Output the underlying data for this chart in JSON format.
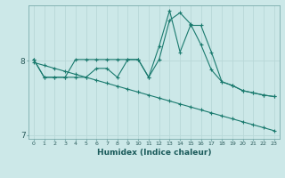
{
  "xlabel": "Humidex (Indice chaleur)",
  "bg_color": "#cce8e8",
  "line_color": "#1a7a6e",
  "grid_color": "#b8d8d8",
  "xmin": 0,
  "xmax": 23,
  "ymin": 6.95,
  "ymax": 8.75,
  "yticks": [
    7,
    8
  ],
  "ytick_labels": [
    "7",
    "8"
  ],
  "series": [
    [
      8.02,
      7.78,
      7.78,
      7.78,
      8.02,
      8.02,
      8.02,
      8.02,
      8.02,
      8.02,
      8.02,
      7.78,
      8.02,
      8.55,
      8.65,
      8.5,
      8.22,
      7.88,
      7.72,
      7.67,
      7.6,
      7.57,
      7.54,
      7.52
    ],
    [
      8.02,
      7.78,
      7.78,
      7.78,
      7.78,
      7.78,
      7.9,
      7.9,
      7.78,
      8.02,
      8.02,
      7.78,
      8.2,
      8.68,
      8.12,
      8.48,
      8.48,
      8.12,
      7.72,
      7.67,
      7.6,
      7.57,
      7.54,
      7.52
    ],
    [
      7.98,
      7.94,
      7.9,
      7.86,
      7.82,
      7.78,
      7.74,
      7.7,
      7.66,
      7.62,
      7.58,
      7.54,
      7.5,
      7.46,
      7.42,
      7.38,
      7.34,
      7.3,
      7.26,
      7.22,
      7.18,
      7.14,
      7.1,
      7.06
    ]
  ]
}
